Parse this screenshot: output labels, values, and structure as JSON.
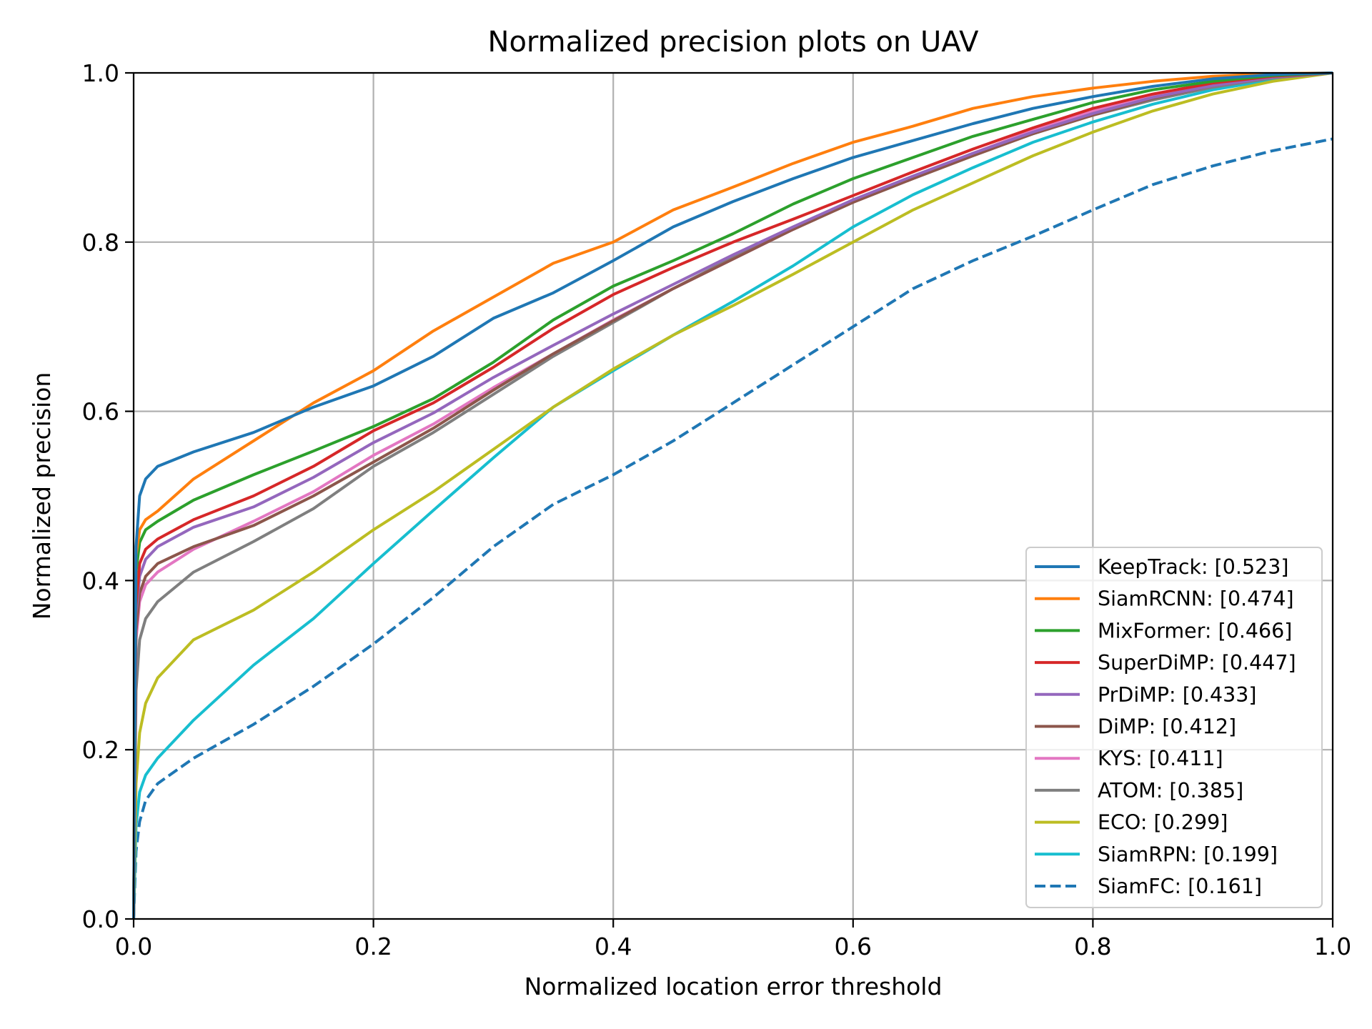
{
  "chart_data": {
    "type": "line",
    "title": "Normalized precision plots on UAV",
    "xlabel": "Normalized location error threshold",
    "ylabel": "Normalized precision",
    "xlim": [
      0,
      1
    ],
    "ylim": [
      0,
      1
    ],
    "xticks": [
      "0.0",
      "0.2",
      "0.4",
      "0.6",
      "0.8",
      "1.0"
    ],
    "yticks": [
      "0.0",
      "0.2",
      "0.4",
      "0.6",
      "0.8",
      "1.0"
    ],
    "grid": true,
    "legend_position": "bottom-right",
    "x": [
      0,
      0.002,
      0.005,
      0.01,
      0.02,
      0.05,
      0.1,
      0.15,
      0.2,
      0.25,
      0.3,
      0.35,
      0.4,
      0.45,
      0.5,
      0.55,
      0.6,
      0.65,
      0.7,
      0.75,
      0.8,
      0.85,
      0.9,
      0.95,
      1.0
    ],
    "series": [
      {
        "name": "KeepTrack: [0.523]",
        "color": "#1f77b4",
        "dash": "solid",
        "values": [
          0.0,
          0.44,
          0.5,
          0.52,
          0.535,
          0.552,
          0.575,
          0.605,
          0.63,
          0.665,
          0.71,
          0.74,
          0.778,
          0.818,
          0.848,
          0.875,
          0.9,
          0.92,
          0.94,
          0.958,
          0.972,
          0.984,
          0.993,
          0.998,
          1.0
        ]
      },
      {
        "name": "SiamRCNN: [0.474]",
        "color": "#ff7f0e",
        "dash": "solid",
        "values": [
          0.0,
          0.43,
          0.46,
          0.472,
          0.482,
          0.52,
          0.565,
          0.61,
          0.648,
          0.695,
          0.735,
          0.775,
          0.8,
          0.838,
          0.865,
          0.893,
          0.918,
          0.937,
          0.958,
          0.972,
          0.982,
          0.99,
          0.996,
          0.999,
          1.0
        ]
      },
      {
        "name": "MixFormer: [0.466]",
        "color": "#2ca02c",
        "dash": "solid",
        "values": [
          0.0,
          0.41,
          0.445,
          0.46,
          0.47,
          0.495,
          0.525,
          0.553,
          0.582,
          0.615,
          0.658,
          0.708,
          0.748,
          0.778,
          0.81,
          0.845,
          0.875,
          0.9,
          0.925,
          0.945,
          0.965,
          0.98,
          0.99,
          0.997,
          1.0
        ]
      },
      {
        "name": "SuperDiMP: [0.447]",
        "color": "#d62728",
        "dash": "solid",
        "values": [
          0.0,
          0.37,
          0.42,
          0.437,
          0.449,
          0.472,
          0.5,
          0.535,
          0.577,
          0.61,
          0.652,
          0.698,
          0.738,
          0.77,
          0.8,
          0.827,
          0.855,
          0.883,
          0.91,
          0.935,
          0.958,
          0.975,
          0.988,
          0.996,
          1.0
        ]
      },
      {
        "name": "PrDiMP: [0.433]",
        "color": "#9467bd",
        "dash": "solid",
        "values": [
          0.0,
          0.36,
          0.405,
          0.425,
          0.44,
          0.463,
          0.487,
          0.522,
          0.563,
          0.598,
          0.64,
          0.678,
          0.715,
          0.75,
          0.785,
          0.818,
          0.85,
          0.878,
          0.905,
          0.93,
          0.952,
          0.971,
          0.985,
          0.995,
          1.0
        ]
      },
      {
        "name": "DiMP: [0.412]",
        "color": "#8c564b",
        "dash": "solid",
        "values": [
          0.0,
          0.34,
          0.385,
          0.405,
          0.42,
          0.44,
          0.465,
          0.5,
          0.54,
          0.58,
          0.625,
          0.668,
          0.707,
          0.745,
          0.78,
          0.815,
          0.847,
          0.875,
          0.902,
          0.928,
          0.95,
          0.97,
          0.985,
          0.995,
          1.0
        ]
      },
      {
        "name": "KYS: [0.411]",
        "color": "#e377c2",
        "dash": "solid",
        "values": [
          0.0,
          0.33,
          0.375,
          0.395,
          0.41,
          0.437,
          0.47,
          0.505,
          0.548,
          0.585,
          0.628,
          0.668,
          0.708,
          0.745,
          0.78,
          0.815,
          0.848,
          0.877,
          0.905,
          0.932,
          0.955,
          0.973,
          0.987,
          0.996,
          1.0
        ]
      },
      {
        "name": "ATOM: [0.385]",
        "color": "#7f7f7f",
        "dash": "solid",
        "values": [
          0.0,
          0.27,
          0.33,
          0.355,
          0.375,
          0.41,
          0.446,
          0.485,
          0.535,
          0.575,
          0.62,
          0.665,
          0.705,
          0.745,
          0.782,
          0.815,
          0.848,
          0.876,
          0.905,
          0.928,
          0.95,
          0.968,
          0.983,
          0.994,
          1.0
        ]
      },
      {
        "name": "ECO: [0.299]",
        "color": "#bcbd22",
        "dash": "solid",
        "values": [
          0.0,
          0.16,
          0.22,
          0.255,
          0.285,
          0.33,
          0.365,
          0.41,
          0.46,
          0.505,
          0.555,
          0.605,
          0.65,
          0.69,
          0.725,
          0.762,
          0.8,
          0.838,
          0.87,
          0.902,
          0.93,
          0.955,
          0.975,
          0.99,
          1.0
        ]
      },
      {
        "name": "SiamRPN: [0.199]",
        "color": "#17becf",
        "dash": "solid",
        "values": [
          0.0,
          0.11,
          0.15,
          0.17,
          0.19,
          0.235,
          0.3,
          0.355,
          0.42,
          0.483,
          0.545,
          0.605,
          0.648,
          0.69,
          0.73,
          0.772,
          0.818,
          0.856,
          0.888,
          0.918,
          0.942,
          0.963,
          0.98,
          0.992,
          1.0
        ]
      },
      {
        "name": "SiamFC: [0.161]",
        "color": "#1f77b4",
        "dash": "dashed",
        "values": [
          0.0,
          0.08,
          0.115,
          0.14,
          0.16,
          0.19,
          0.23,
          0.275,
          0.325,
          0.38,
          0.44,
          0.49,
          0.525,
          0.565,
          0.61,
          0.655,
          0.7,
          0.745,
          0.778,
          0.807,
          0.838,
          0.868,
          0.89,
          0.908,
          0.922
        ]
      }
    ]
  }
}
